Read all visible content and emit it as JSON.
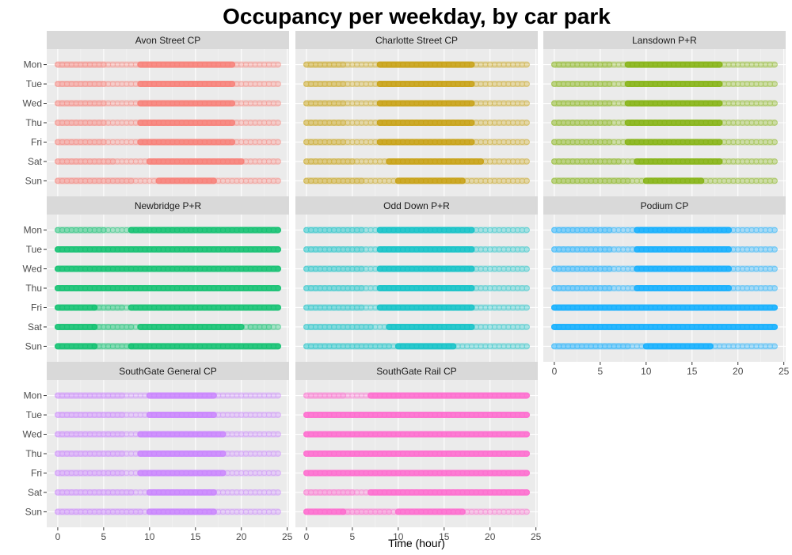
{
  "chart_data": {
    "type": "scatter",
    "title": "Occupancy per weekday, by car park",
    "xlabel": "Time (hour)",
    "ylabel": "",
    "xlim": [
      -1.2,
      25.2
    ],
    "x_ticks": [
      0,
      5,
      10,
      15,
      20,
      25
    ],
    "categories": [
      "Mon",
      "Tue",
      "Wed",
      "Thu",
      "Fri",
      "Sat",
      "Sun"
    ],
    "x_range_observed": [
      0,
      24
    ],
    "panels": [
      {
        "name": "Avon Street CP",
        "color": "#F8766D",
        "days": [
          {
            "day": "Mon",
            "dense": [
              [
                9,
                19
              ]
            ],
            "faint": [
              [
                0,
                5
              ]
            ]
          },
          {
            "day": "Tue",
            "dense": [
              [
                9,
                19
              ]
            ],
            "faint": [
              [
                0,
                5
              ]
            ]
          },
          {
            "day": "Wed",
            "dense": [
              [
                9,
                19
              ]
            ],
            "faint": [
              [
                0,
                5
              ]
            ]
          },
          {
            "day": "Thu",
            "dense": [
              [
                9,
                19
              ]
            ],
            "faint": [
              [
                0,
                5
              ]
            ]
          },
          {
            "day": "Fri",
            "dense": [
              [
                9,
                19
              ]
            ],
            "faint": [
              [
                0,
                5
              ]
            ]
          },
          {
            "day": "Sat",
            "dense": [
              [
                10,
                20
              ]
            ],
            "faint": [
              [
                0,
                6
              ]
            ]
          },
          {
            "day": "Sun",
            "dense": [
              [
                11,
                17
              ]
            ],
            "faint": [
              [
                0,
                8
              ]
            ]
          }
        ]
      },
      {
        "name": "Charlotte Street CP",
        "color": "#C49A00",
        "days": [
          {
            "day": "Mon",
            "dense": [
              [
                8,
                18
              ]
            ],
            "faint": [
              [
                0,
                4
              ]
            ]
          },
          {
            "day": "Tue",
            "dense": [
              [
                8,
                18
              ]
            ],
            "faint": [
              [
                0,
                4
              ]
            ]
          },
          {
            "day": "Wed",
            "dense": [
              [
                8,
                18
              ]
            ],
            "faint": [
              [
                0,
                4
              ]
            ]
          },
          {
            "day": "Thu",
            "dense": [
              [
                8,
                18
              ]
            ],
            "faint": [
              [
                0,
                4
              ]
            ]
          },
          {
            "day": "Fri",
            "dense": [
              [
                8,
                18
              ]
            ],
            "faint": [
              [
                0,
                4
              ]
            ]
          },
          {
            "day": "Sat",
            "dense": [
              [
                9,
                19
              ]
            ],
            "faint": [
              [
                0,
                5
              ]
            ]
          },
          {
            "day": "Sun",
            "dense": [
              [
                10,
                17
              ]
            ],
            "faint": [
              [
                0,
                6
              ]
            ]
          }
        ]
      },
      {
        "name": "Lansdown P+R",
        "color": "#7CAE00",
        "days": [
          {
            "day": "Mon",
            "dense": [
              [
                8,
                18
              ]
            ],
            "faint": [
              [
                0,
                6
              ]
            ]
          },
          {
            "day": "Tue",
            "dense": [
              [
                8,
                18
              ]
            ],
            "faint": [
              [
                0,
                6
              ]
            ]
          },
          {
            "day": "Wed",
            "dense": [
              [
                8,
                18
              ]
            ],
            "faint": [
              [
                0,
                6
              ]
            ]
          },
          {
            "day": "Thu",
            "dense": [
              [
                8,
                18
              ]
            ],
            "faint": [
              [
                0,
                6
              ]
            ]
          },
          {
            "day": "Fri",
            "dense": [
              [
                8,
                18
              ]
            ],
            "faint": [
              [
                0,
                6
              ]
            ]
          },
          {
            "day": "Sat",
            "dense": [
              [
                9,
                18
              ]
            ],
            "faint": [
              [
                0,
                7
              ]
            ]
          },
          {
            "day": "Sun",
            "dense": [
              [
                10,
                16
              ]
            ],
            "faint": [
              [
                0,
                8
              ]
            ]
          }
        ]
      },
      {
        "name": "Newbridge P+R",
        "color": "#00BE67",
        "days": [
          {
            "day": "Mon",
            "dense": [
              [
                8,
                24
              ]
            ],
            "faint": [
              [
                0,
                5
              ]
            ]
          },
          {
            "day": "Tue",
            "dense": [
              [
                0,
                24
              ]
            ],
            "faint": []
          },
          {
            "day": "Wed",
            "dense": [
              [
                0,
                24
              ]
            ],
            "faint": []
          },
          {
            "day": "Thu",
            "dense": [
              [
                0,
                24
              ]
            ],
            "faint": []
          },
          {
            "day": "Fri",
            "dense": [
              [
                0,
                4
              ],
              [
                8,
                24
              ]
            ],
            "faint": [
              [
                4,
                7
              ]
            ]
          },
          {
            "day": "Sat",
            "dense": [
              [
                0,
                4
              ],
              [
                9,
                20
              ]
            ],
            "faint": [
              [
                4,
                8
              ],
              [
                21,
                23
              ]
            ]
          },
          {
            "day": "Sun",
            "dense": [
              [
                0,
                4
              ],
              [
                8,
                24
              ]
            ],
            "faint": [
              [
                4,
                8
              ]
            ]
          }
        ]
      },
      {
        "name": "Odd Down P+R",
        "color": "#00BFC4",
        "days": [
          {
            "day": "Mon",
            "dense": [
              [
                8,
                18
              ]
            ],
            "faint": [
              [
                0,
                6
              ]
            ]
          },
          {
            "day": "Tue",
            "dense": [
              [
                8,
                18
              ]
            ],
            "faint": [
              [
                0,
                6
              ]
            ]
          },
          {
            "day": "Wed",
            "dense": [
              [
                8,
                18
              ]
            ],
            "faint": [
              [
                0,
                6
              ]
            ]
          },
          {
            "day": "Thu",
            "dense": [
              [
                8,
                18
              ]
            ],
            "faint": [
              [
                0,
                6
              ]
            ]
          },
          {
            "day": "Fri",
            "dense": [
              [
                8,
                18
              ]
            ],
            "faint": [
              [
                0,
                6
              ]
            ]
          },
          {
            "day": "Sat",
            "dense": [
              [
                9,
                18
              ]
            ],
            "faint": [
              [
                0,
                7
              ]
            ]
          },
          {
            "day": "Sun",
            "dense": [
              [
                10,
                16
              ]
            ],
            "faint": [
              [
                0,
                9
              ]
            ]
          }
        ]
      },
      {
        "name": "Podium CP",
        "color": "#00A9FF",
        "days": [
          {
            "day": "Mon",
            "dense": [
              [
                9,
                19
              ]
            ],
            "faint": [
              [
                0,
                6
              ]
            ]
          },
          {
            "day": "Tue",
            "dense": [
              [
                9,
                19
              ]
            ],
            "faint": [
              [
                0,
                6
              ]
            ]
          },
          {
            "day": "Wed",
            "dense": [
              [
                9,
                19
              ]
            ],
            "faint": [
              [
                0,
                6
              ]
            ]
          },
          {
            "day": "Thu",
            "dense": [
              [
                9,
                19
              ]
            ],
            "faint": [
              [
                0,
                6
              ]
            ]
          },
          {
            "day": "Fri",
            "dense": [
              [
                0,
                24
              ]
            ],
            "faint": []
          },
          {
            "day": "Sat",
            "dense": [
              [
                0,
                24
              ]
            ],
            "faint": []
          },
          {
            "day": "Sun",
            "dense": [
              [
                10,
                17
              ]
            ],
            "faint": [
              [
                0,
                8
              ]
            ]
          }
        ]
      },
      {
        "name": "SouthGate General CP",
        "color": "#C77CFF",
        "days": [
          {
            "day": "Mon",
            "dense": [
              [
                10,
                17
              ]
            ],
            "faint": [
              [
                0,
                7
              ]
            ]
          },
          {
            "day": "Tue",
            "dense": [
              [
                10,
                17
              ]
            ],
            "faint": [
              [
                0,
                7
              ]
            ]
          },
          {
            "day": "Wed",
            "dense": [
              [
                9,
                18
              ]
            ],
            "faint": [
              [
                0,
                7
              ]
            ]
          },
          {
            "day": "Thu",
            "dense": [
              [
                9,
                18
              ]
            ],
            "faint": [
              [
                0,
                7
              ]
            ]
          },
          {
            "day": "Fri",
            "dense": [
              [
                9,
                18
              ]
            ],
            "faint": [
              [
                0,
                7
              ]
            ]
          },
          {
            "day": "Sat",
            "dense": [
              [
                10,
                17
              ]
            ],
            "faint": [
              [
                0,
                8
              ]
            ]
          },
          {
            "day": "Sun",
            "dense": [
              [
                10,
                17
              ]
            ],
            "faint": [
              [
                0,
                9
              ]
            ]
          }
        ]
      },
      {
        "name": "SouthGate Rail CP",
        "color": "#FF61CC",
        "days": [
          {
            "day": "Mon",
            "dense": [
              [
                7,
                24
              ]
            ],
            "faint": [
              [
                0,
                4
              ]
            ]
          },
          {
            "day": "Tue",
            "dense": [
              [
                0,
                24
              ]
            ],
            "faint": []
          },
          {
            "day": "Wed",
            "dense": [
              [
                0,
                24
              ]
            ],
            "faint": []
          },
          {
            "day": "Thu",
            "dense": [
              [
                0,
                24
              ]
            ],
            "faint": []
          },
          {
            "day": "Fri",
            "dense": [
              [
                0,
                24
              ]
            ],
            "faint": []
          },
          {
            "day": "Sat",
            "dense": [
              [
                7,
                24
              ]
            ],
            "faint": [
              [
                0,
                5
              ]
            ]
          },
          {
            "day": "Sun",
            "dense": [
              [
                0,
                4
              ],
              [
                10,
                17
              ]
            ],
            "faint": [
              [
                4,
                9
              ]
            ]
          }
        ]
      }
    ]
  }
}
